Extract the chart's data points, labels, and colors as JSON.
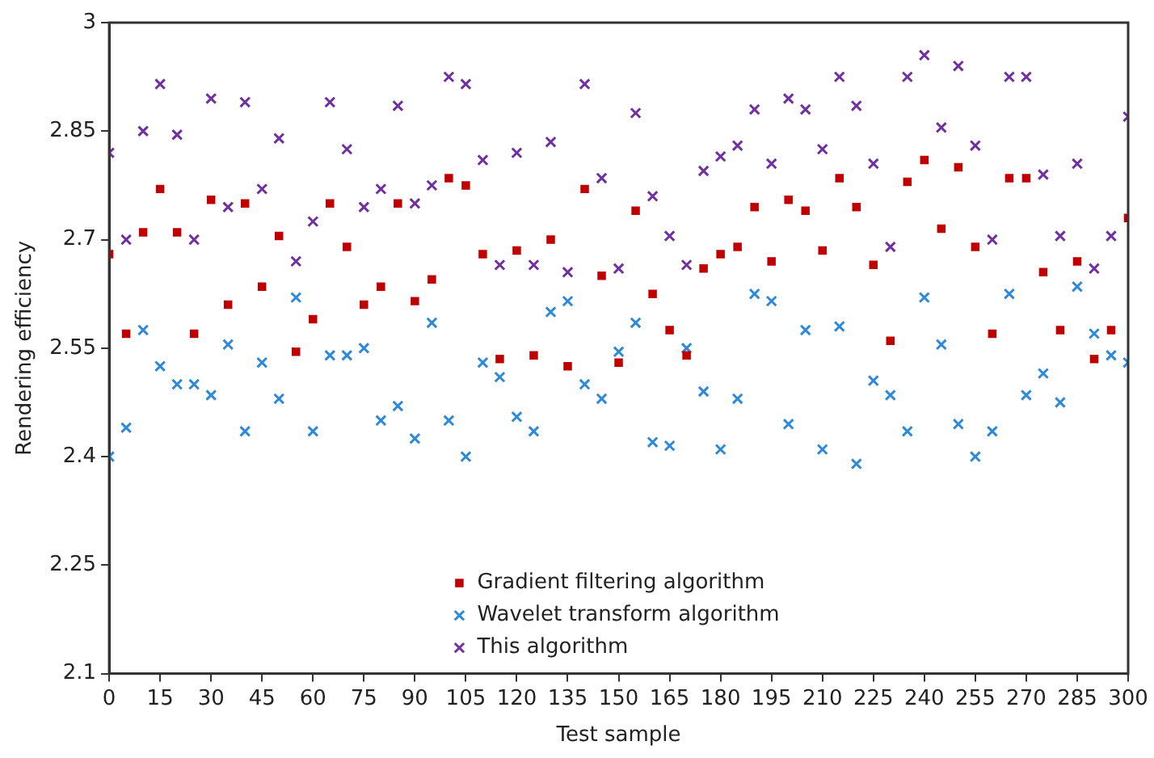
{
  "chart_data": {
    "type": "scatter",
    "xlabel": "Test sample",
    "ylabel": "Rendering efficiency",
    "x": [
      0,
      5,
      10,
      15,
      20,
      25,
      30,
      35,
      40,
      45,
      50,
      55,
      60,
      65,
      70,
      75,
      80,
      85,
      90,
      95,
      100,
      105,
      110,
      115,
      120,
      125,
      130,
      135,
      140,
      145,
      150,
      155,
      160,
      165,
      170,
      175,
      180,
      185,
      190,
      195,
      200,
      205,
      210,
      215,
      220,
      225,
      230,
      235,
      240,
      245,
      250,
      255,
      260,
      265,
      270,
      275,
      280,
      285,
      290,
      295,
      300
    ],
    "series": [
      {
        "name": "Gradient filtering algorithm",
        "color": "#c00000",
        "marker": "square",
        "values": [
          2.68,
          2.57,
          2.71,
          2.77,
          2.71,
          2.57,
          2.755,
          2.61,
          2.75,
          2.635,
          2.705,
          2.545,
          2.59,
          2.75,
          2.69,
          2.61,
          2.635,
          2.75,
          2.615,
          2.645,
          2.785,
          2.775,
          2.68,
          2.535,
          2.685,
          2.54,
          2.7,
          2.525,
          2.77,
          2.65,
          2.53,
          2.74,
          2.625,
          2.575,
          2.54,
          2.66,
          2.68,
          2.69,
          2.745,
          2.67,
          2.755,
          2.74,
          2.685,
          2.785,
          2.745,
          2.665,
          2.56,
          2.78,
          2.81,
          2.715,
          2.8,
          2.69,
          2.57,
          2.785,
          2.785,
          2.655,
          2.575,
          2.67,
          2.535,
          2.575,
          2.73
        ]
      },
      {
        "name": "Wavelet transform algorithm",
        "color": "#2e8ad8",
        "marker": "cross",
        "values": [
          2.4,
          2.44,
          2.575,
          2.525,
          2.5,
          2.5,
          2.485,
          2.555,
          2.435,
          2.53,
          2.48,
          2.62,
          2.435,
          2.54,
          2.54,
          2.55,
          2.45,
          2.47,
          2.425,
          2.585,
          2.45,
          2.4,
          2.53,
          2.51,
          2.455,
          2.435,
          2.6,
          2.615,
          2.5,
          2.48,
          2.545,
          2.585,
          2.42,
          2.415,
          2.55,
          2.49,
          2.41,
          2.48,
          2.625,
          2.615,
          2.445,
          2.575,
          2.41,
          2.58,
          2.39,
          2.505,
          2.485,
          2.435,
          2.62,
          2.555,
          2.445,
          2.4,
          2.435,
          2.625,
          2.485,
          2.515,
          2.475,
          2.635,
          2.57,
          2.54,
          2.53
        ]
      },
      {
        "name": "This algorithm",
        "color": "#7030a0",
        "marker": "cross",
        "values": [
          2.82,
          2.7,
          2.85,
          2.915,
          2.845,
          2.7,
          2.895,
          2.745,
          2.89,
          2.77,
          2.84,
          2.67,
          2.725,
          2.89,
          2.825,
          2.745,
          2.77,
          2.885,
          2.75,
          2.775,
          2.925,
          2.915,
          2.81,
          2.665,
          2.82,
          2.665,
          2.835,
          2.655,
          2.915,
          2.785,
          2.66,
          2.875,
          2.76,
          2.705,
          2.665,
          2.795,
          2.815,
          2.83,
          2.88,
          2.805,
          2.895,
          2.88,
          2.825,
          2.925,
          2.885,
          2.805,
          2.69,
          2.925,
          2.955,
          2.855,
          2.94,
          2.83,
          2.7,
          2.925,
          2.925,
          2.79,
          2.705,
          2.805,
          2.66,
          2.705,
          2.87
        ]
      }
    ],
    "xlim": [
      0,
      300
    ],
    "xticks": [
      0,
      15,
      30,
      45,
      60,
      75,
      90,
      105,
      120,
      135,
      150,
      165,
      180,
      195,
      210,
      225,
      240,
      255,
      270,
      285,
      300
    ],
    "ylim": [
      2.1,
      3
    ],
    "yticks": [
      2.1,
      2.25,
      2.4,
      2.55,
      2.7,
      2.85,
      3
    ],
    "grid": false,
    "legend": "bottom"
  }
}
